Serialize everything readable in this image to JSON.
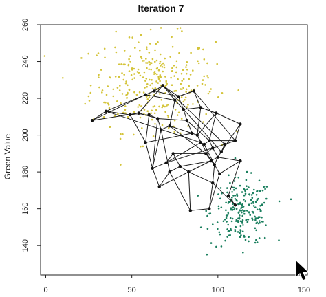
{
  "chart_data": {
    "type": "scatter",
    "title": "Iteration  7",
    "xlabel": "",
    "ylabel": "Green Value",
    "xlim": [
      -3,
      152
    ],
    "ylim": [
      124,
      260
    ],
    "xticks": [
      0,
      50,
      100,
      150
    ],
    "yticks": [
      140,
      160,
      180,
      200,
      220,
      240,
      260
    ],
    "tick_labels_x": [
      "0",
      "50",
      "100",
      "150"
    ],
    "tick_labels_y": [
      "140",
      "160",
      "180",
      "200",
      "220",
      "240",
      "260"
    ],
    "grid": false,
    "legend": "none",
    "clusters": [
      {
        "color": "#d4c43a",
        "center": [
          62,
          228
        ],
        "spread": [
          18,
          13
        ],
        "count": 320
      },
      {
        "color": "#1a7f5e",
        "center": [
          114,
          158
        ],
        "spread": [
          9,
          9
        ],
        "count": 230
      }
    ],
    "network_nodes": [
      [
        27,
        208
      ],
      [
        35,
        213
      ],
      [
        49,
        211
      ],
      [
        54,
        212
      ],
      [
        58,
        222
      ],
      [
        63,
        224
      ],
      [
        68,
        227
      ],
      [
        60,
        211
      ],
      [
        65,
        209
      ],
      [
        67,
        203
      ],
      [
        72,
        205
      ],
      [
        75,
        219
      ],
      [
        77,
        221
      ],
      [
        80,
        214
      ],
      [
        82,
        208
      ],
      [
        85,
        201
      ],
      [
        88,
        200
      ],
      [
        90,
        196
      ],
      [
        92,
        195
      ],
      [
        95,
        197
      ],
      [
        97,
        193
      ],
      [
        93,
        190
      ],
      [
        96,
        186
      ],
      [
        98,
        184
      ],
      [
        100,
        188
      ],
      [
        102,
        191
      ],
      [
        104,
        195
      ],
      [
        110,
        197
      ],
      [
        113,
        206
      ],
      [
        99,
        212
      ],
      [
        90,
        215
      ],
      [
        86,
        224
      ],
      [
        70,
        185
      ],
      [
        62,
        182
      ],
      [
        58,
        196
      ],
      [
        74,
        190
      ],
      [
        78,
        183
      ],
      [
        72,
        180
      ],
      [
        66,
        172
      ],
      [
        83,
        180
      ],
      [
        84,
        159
      ],
      [
        95,
        160
      ],
      [
        101,
        179
      ],
      [
        106,
        167
      ],
      [
        110,
        162
      ],
      [
        113,
        186
      ],
      [
        97,
        174
      ]
    ],
    "network_edges": [
      [
        0,
        1
      ],
      [
        0,
        4
      ],
      [
        0,
        3
      ],
      [
        1,
        2
      ],
      [
        1,
        5
      ],
      [
        1,
        17
      ],
      [
        2,
        3
      ],
      [
        2,
        7
      ],
      [
        3,
        6
      ],
      [
        3,
        8
      ],
      [
        4,
        5
      ],
      [
        4,
        11
      ],
      [
        5,
        6
      ],
      [
        5,
        12
      ],
      [
        6,
        12
      ],
      [
        6,
        11
      ],
      [
        6,
        26
      ],
      [
        7,
        8
      ],
      [
        7,
        34
      ],
      [
        8,
        9
      ],
      [
        8,
        14
      ],
      [
        9,
        10
      ],
      [
        9,
        33
      ],
      [
        10,
        11
      ],
      [
        10,
        15
      ],
      [
        11,
        13
      ],
      [
        12,
        13
      ],
      [
        12,
        31
      ],
      [
        13,
        14
      ],
      [
        13,
        30
      ],
      [
        14,
        15
      ],
      [
        14,
        19
      ],
      [
        15,
        16
      ],
      [
        16,
        17
      ],
      [
        16,
        22
      ],
      [
        17,
        18
      ],
      [
        18,
        19
      ],
      [
        18,
        23
      ],
      [
        19,
        20
      ],
      [
        19,
        29
      ],
      [
        20,
        21
      ],
      [
        20,
        24
      ],
      [
        21,
        22
      ],
      [
        21,
        35
      ],
      [
        22,
        23
      ],
      [
        22,
        36
      ],
      [
        23,
        24
      ],
      [
        23,
        46
      ],
      [
        24,
        25
      ],
      [
        25,
        26
      ],
      [
        25,
        28
      ],
      [
        26,
        27
      ],
      [
        27,
        28
      ],
      [
        28,
        29
      ],
      [
        29,
        30
      ],
      [
        30,
        31
      ],
      [
        31,
        12
      ],
      [
        32,
        33
      ],
      [
        32,
        35
      ],
      [
        33,
        34
      ],
      [
        33,
        38
      ],
      [
        34,
        2
      ],
      [
        35,
        36
      ],
      [
        36,
        37
      ],
      [
        37,
        38
      ],
      [
        36,
        39
      ],
      [
        39,
        40
      ],
      [
        39,
        22
      ],
      [
        40,
        41
      ],
      [
        40,
        37
      ],
      [
        41,
        42
      ],
      [
        41,
        46
      ],
      [
        42,
        45
      ],
      [
        42,
        23
      ],
      [
        43,
        44
      ],
      [
        43,
        45
      ],
      [
        44,
        46
      ],
      [
        45,
        24
      ],
      [
        46,
        39
      ],
      [
        38,
        24
      ],
      [
        32,
        20
      ],
      [
        15,
        34
      ],
      [
        30,
        16
      ],
      [
        27,
        19
      ],
      [
        9,
        37
      ],
      [
        10,
        21
      ],
      [
        17,
        32
      ],
      [
        26,
        20
      ],
      [
        13,
        25
      ],
      [
        8,
        33
      ],
      [
        29,
        16
      ],
      [
        31,
        27
      ]
    ]
  }
}
